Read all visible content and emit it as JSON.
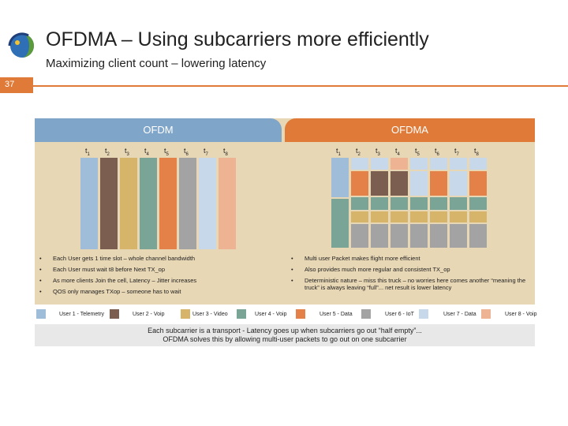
{
  "header": {
    "title": "OFDMA – Using subcarriers more efficiently",
    "subtitle": "Maximizing client count – lowering latency",
    "page_number": "37"
  },
  "colors": {
    "accent": "#e07a38",
    "ofdm_header": "#7fa5c8",
    "panel": "#e8d7b5",
    "user1": "#9fbcd8",
    "user2": "#7b5e50",
    "user3": "#d6b46a",
    "user4": "#7aa596",
    "user5": "#e38148",
    "user6": "#a3a3a3",
    "user7": "#c7d8ea",
    "user8": "#edb392"
  },
  "ofdm": {
    "label": "OFDM",
    "ticks": [
      {
        "t": "t",
        "n": "1"
      },
      {
        "t": "t",
        "n": "2"
      },
      {
        "t": "t",
        "n": "3"
      },
      {
        "t": "t",
        "n": "4"
      },
      {
        "t": "t",
        "n": "5"
      },
      {
        "t": "t",
        "n": "6"
      },
      {
        "t": "t",
        "n": "7"
      },
      {
        "t": "t",
        "n": "8"
      }
    ],
    "bullets": [
      "Each User gets 1 time slot – whole channel bandwidth",
      "Each User must wait t8 before Next TX_op",
      "As more clients Join the cell, Latency – Jitter increases",
      "QOS only manages TXop – someone has to wait"
    ]
  },
  "ofdma": {
    "label": "OFDMA",
    "ticks": [
      {
        "t": "t",
        "n": "1"
      },
      {
        "t": "t",
        "n": "2"
      },
      {
        "t": "t",
        "n": "3"
      },
      {
        "t": "t",
        "n": "4"
      },
      {
        "t": "t",
        "n": "5"
      },
      {
        "t": "t",
        "n": "6"
      },
      {
        "t": "t",
        "n": "7"
      },
      {
        "t": "t",
        "n": "8"
      }
    ],
    "bullets": [
      "Multi user Packet makes flight more efficient",
      "Also provides much more regular and consistent TX_op",
      "Deterministic nature – miss this truck – no worries here comes another “meaning the truck” is always leaving “full”... net result is lower latency"
    ]
  },
  "legend": [
    {
      "label": "User 1 - Telemetry",
      "color": "#9fbcd8"
    },
    {
      "label": "User 2 - Voip",
      "color": "#7b5e50"
    },
    {
      "label": "User 3 - Video",
      "color": "#d6b46a"
    },
    {
      "label": "User 4 - Voip",
      "color": "#7aa596"
    },
    {
      "label": "User 5 - Data",
      "color": "#e38148"
    },
    {
      "label": "User 6 - IoT",
      "color": "#a3a3a3"
    },
    {
      "label": "User 7 - Data",
      "color": "#c7d8ea"
    },
    {
      "label": "User 8 - Voip",
      "color": "#edb392"
    }
  ],
  "note": {
    "line1": "Each subcarrier is a transport - Latency goes up when subcarriers go out “half empty”...",
    "line2": "OFDMA solves this by allowing multi-user packets to go out on one subcarrier"
  }
}
